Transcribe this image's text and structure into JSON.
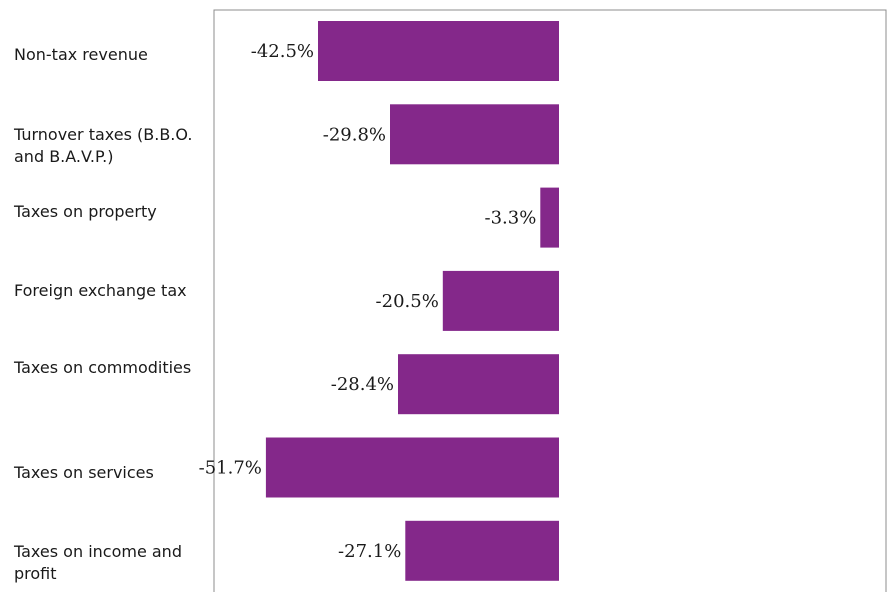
{
  "chart_data": {
    "type": "bar",
    "orientation": "horizontal",
    "categories": [
      "Non-tax revenue",
      "Turnover taxes (B.B.O. and B.A.V.P.)",
      "Taxes on property",
      "Foreign exchange tax",
      "Taxes on commodities",
      "Taxes on services",
      "Taxes on income and profit"
    ],
    "values": [
      -42.5,
      -29.8,
      -3.3,
      -20.5,
      -28.4,
      -51.7,
      -27.1
    ],
    "data_labels": [
      "-42.5%",
      "-29.8%",
      "-3.3%",
      "-20.5%",
      "-28.4%",
      "-51.7%",
      "-27.1%"
    ],
    "title": "",
    "xlabel": "",
    "ylabel": "",
    "grid": false,
    "bar_color": "#84288A"
  }
}
